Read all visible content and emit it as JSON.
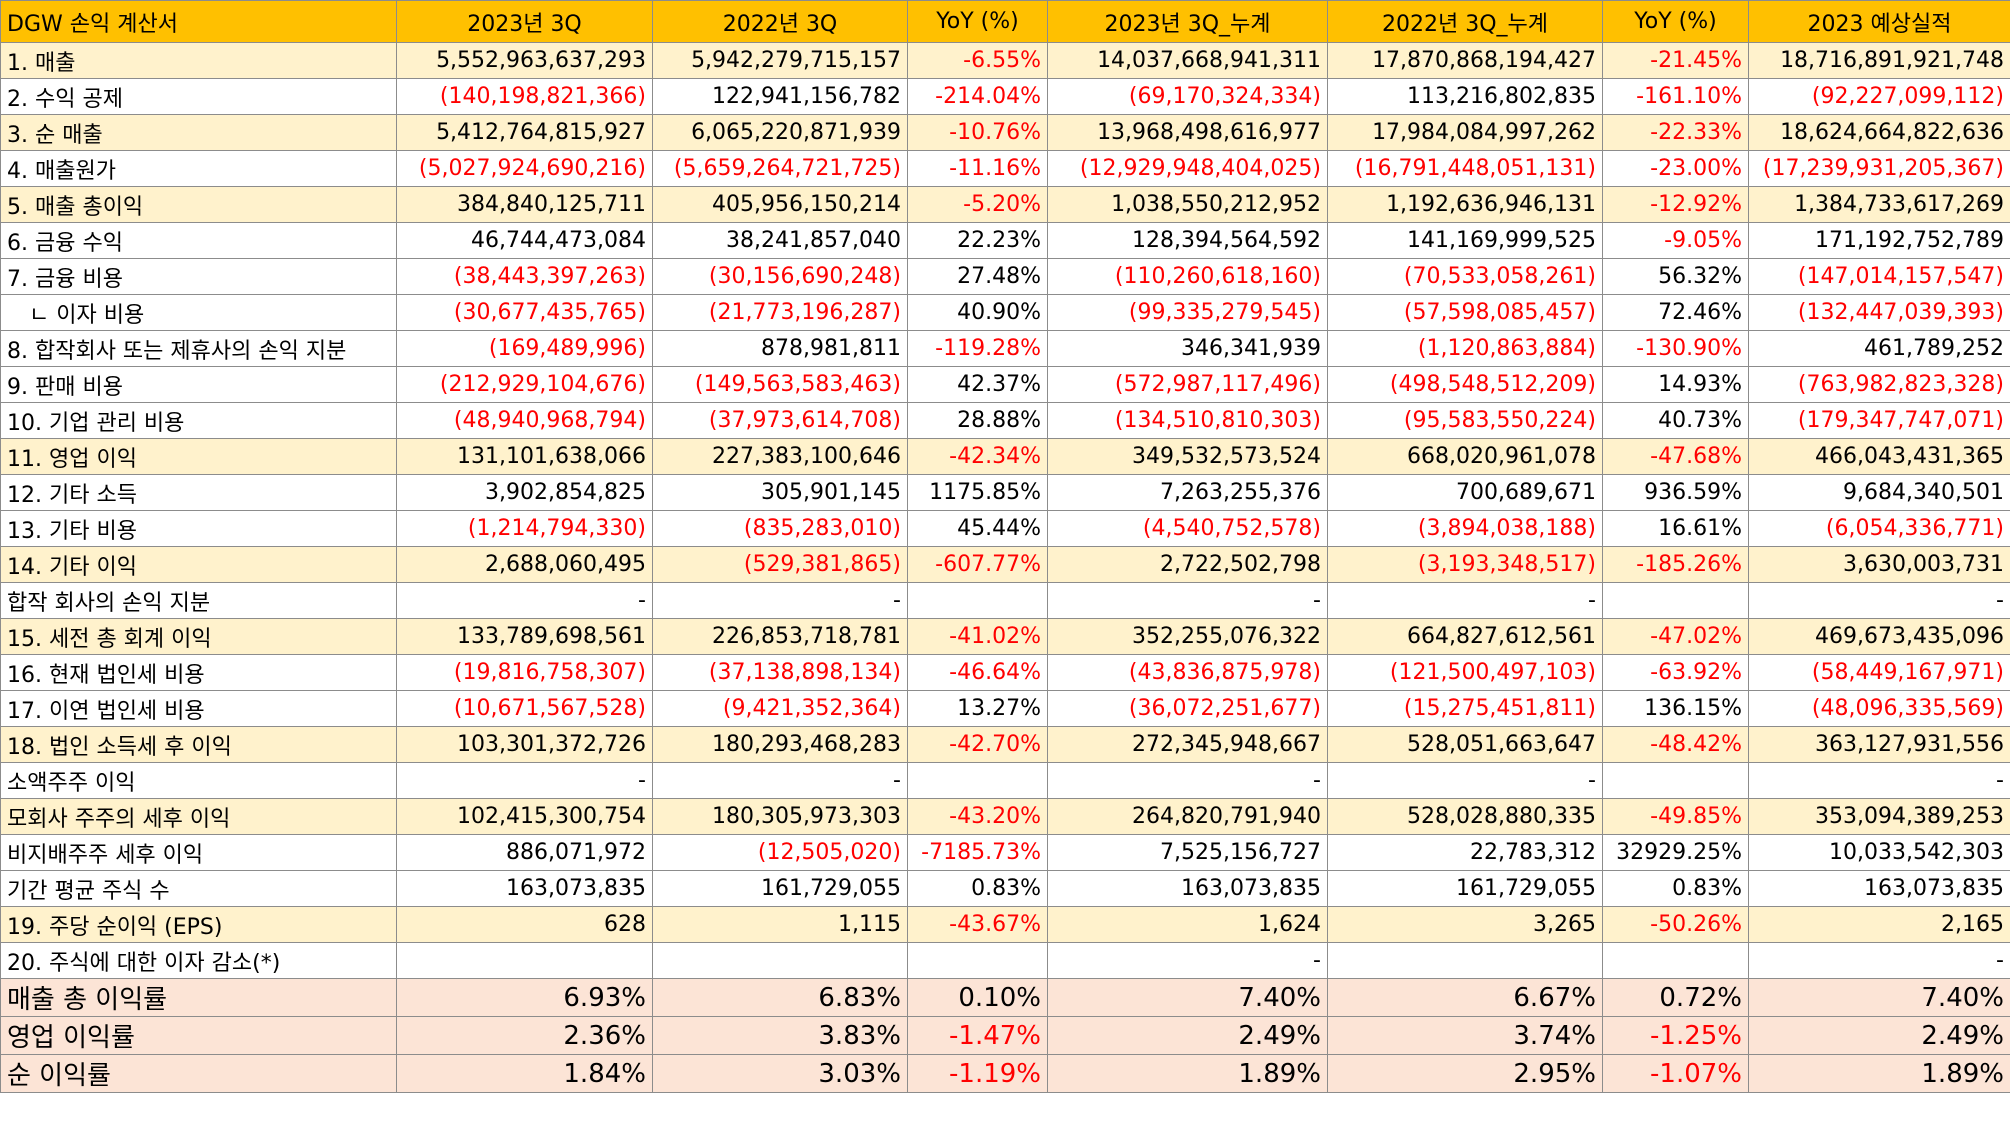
{
  "headers": [
    "DGW 손익 계산서",
    "2023년 3Q",
    "2022년 3Q",
    "YoY (%)",
    "2023년 3Q_누계",
    "2022년 3Q_누계",
    "YoY (%)",
    "2023 예상실적"
  ],
  "rows": [
    {
      "label": "1. 매출",
      "hl": true,
      "cells": [
        "5,552,963,637,293",
        "5,942,279,715,157",
        "-6.55%",
        "14,037,668,941,311",
        "17,870,868,194,427",
        "-21.45%",
        "18,716,891,921,748"
      ]
    },
    {
      "label": "2. 수익 공제",
      "hl": false,
      "cells": [
        "(140,198,821,366)",
        "122,941,156,782",
        "-214.04%",
        "(69,170,324,334)",
        "113,216,802,835",
        "-161.10%",
        "(92,227,099,112)"
      ]
    },
    {
      "label": "3. 순 매출",
      "hl": true,
      "cells": [
        "5,412,764,815,927",
        "6,065,220,871,939",
        "-10.76%",
        "13,968,498,616,977",
        "17,984,084,997,262",
        "-22.33%",
        "18,624,664,822,636"
      ]
    },
    {
      "label": "4. 매출원가",
      "hl": false,
      "cells": [
        "(5,027,924,690,216)",
        "(5,659,264,721,725)",
        "-11.16%",
        "(12,929,948,404,025)",
        "(16,791,448,051,131)",
        "-23.00%",
        "(17,239,931,205,367)"
      ]
    },
    {
      "label": "5. 매출 총이익",
      "hl": true,
      "cells": [
        "384,840,125,711",
        "405,956,150,214",
        "-5.20%",
        "1,038,550,212,952",
        "1,192,636,946,131",
        "-12.92%",
        "1,384,733,617,269"
      ]
    },
    {
      "label": "6. 금융 수익",
      "hl": false,
      "cells": [
        "46,744,473,084",
        "38,241,857,040",
        "22.23%",
        "128,394,564,592",
        "141,169,999,525",
        "-9.05%",
        "171,192,752,789"
      ]
    },
    {
      "label": "7. 금융 비용",
      "hl": false,
      "cells": [
        "(38,443,397,263)",
        "(30,156,690,248)",
        "27.48%",
        "(110,260,618,160)",
        "(70,533,058,261)",
        "56.32%",
        "(147,014,157,547)"
      ]
    },
    {
      "label": "　ㄴ 이자 비용",
      "hl": false,
      "cells": [
        "(30,677,435,765)",
        "(21,773,196,287)",
        "40.90%",
        "(99,335,279,545)",
        "(57,598,085,457)",
        "72.46%",
        "(132,447,039,393)"
      ]
    },
    {
      "label": "8. 합작회사 또는 제휴사의 손익 지분",
      "hl": false,
      "cells": [
        "(169,489,996)",
        "878,981,811",
        "-119.28%",
        "346,341,939",
        "(1,120,863,884)",
        "-130.90%",
        "461,789,252"
      ]
    },
    {
      "label": "9. 판매 비용",
      "hl": false,
      "cells": [
        "(212,929,104,676)",
        "(149,563,583,463)",
        "42.37%",
        "(572,987,117,496)",
        "(498,548,512,209)",
        "14.93%",
        "(763,982,823,328)"
      ]
    },
    {
      "label": "10. 기업 관리 비용",
      "hl": false,
      "cells": [
        "(48,940,968,794)",
        "(37,973,614,708)",
        "28.88%",
        "(134,510,810,303)",
        "(95,583,550,224)",
        "40.73%",
        "(179,347,747,071)"
      ]
    },
    {
      "label": "11. 영업 이익",
      "hl": true,
      "cells": [
        "131,101,638,066",
        "227,383,100,646",
        "-42.34%",
        "349,532,573,524",
        "668,020,961,078",
        "-47.68%",
        "466,043,431,365"
      ]
    },
    {
      "label": "12. 기타 소득",
      "hl": false,
      "cells": [
        "3,902,854,825",
        "305,901,145",
        "1175.85%",
        "7,263,255,376",
        "700,689,671",
        "936.59%",
        "9,684,340,501"
      ]
    },
    {
      "label": "13. 기타 비용",
      "hl": false,
      "cells": [
        "(1,214,794,330)",
        "(835,283,010)",
        "45.44%",
        "(4,540,752,578)",
        "(3,894,038,188)",
        "16.61%",
        "(6,054,336,771)"
      ]
    },
    {
      "label": "14. 기타 이익",
      "hl": true,
      "cells": [
        "2,688,060,495",
        "(529,381,865)",
        "-607.77%",
        "2,722,502,798",
        "(3,193,348,517)",
        "-185.26%",
        "3,630,003,731"
      ]
    },
    {
      "label": "합작 회사의 손익 지분",
      "hl": false,
      "cells": [
        "-",
        "-",
        "",
        "-",
        "-",
        "",
        "-"
      ]
    },
    {
      "label": "15. 세전 총 회계 이익",
      "hl": true,
      "cells": [
        "133,789,698,561",
        "226,853,718,781",
        "-41.02%",
        "352,255,076,322",
        "664,827,612,561",
        "-47.02%",
        "469,673,435,096"
      ]
    },
    {
      "label": "16. 현재 법인세 비용",
      "hl": false,
      "cells": [
        "(19,816,758,307)",
        "(37,138,898,134)",
        "-46.64%",
        "(43,836,875,978)",
        "(121,500,497,103)",
        "-63.92%",
        "(58,449,167,971)"
      ]
    },
    {
      "label": "17. 이연 법인세 비용",
      "hl": false,
      "cells": [
        "(10,671,567,528)",
        "(9,421,352,364)",
        "13.27%",
        "(36,072,251,677)",
        "(15,275,451,811)",
        "136.15%",
        "(48,096,335,569)"
      ]
    },
    {
      "label": "18. 법인 소득세 후 이익",
      "hl": true,
      "cells": [
        "103,301,372,726",
        "180,293,468,283",
        "-42.70%",
        "272,345,948,667",
        "528,051,663,647",
        "-48.42%",
        "363,127,931,556"
      ]
    },
    {
      "label": "소액주주 이익",
      "hl": false,
      "cells": [
        "-",
        "-",
        "",
        "-",
        "-",
        "",
        "-"
      ]
    },
    {
      "label": "모회사 주주의 세후 이익",
      "hl": true,
      "cells": [
        "102,415,300,754",
        "180,305,973,303",
        "-43.20%",
        "264,820,791,940",
        "528,028,880,335",
        "-49.85%",
        "353,094,389,253"
      ]
    },
    {
      "label": "비지배주주 세후 이익",
      "hl": false,
      "cells": [
        "886,071,972",
        "(12,505,020)",
        "-7185.73%",
        "7,525,156,727",
        "22,783,312",
        "32929.25%",
        "10,033,542,303"
      ]
    },
    {
      "label": "기간 평균 주식 수",
      "hl": false,
      "cells": [
        "163,073,835",
        "161,729,055",
        "0.83%",
        "163,073,835",
        "161,729,055",
        "0.83%",
        "163,073,835"
      ]
    },
    {
      "label": "19. 주당 순이익 (EPS)",
      "hl": true,
      "cells": [
        "628",
        "1,115",
        "-43.67%",
        "1,624",
        "3,265",
        "-50.26%",
        "2,165"
      ]
    },
    {
      "label": "20. 주식에 대한 이자 감소(*)",
      "hl": false,
      "cells": [
        "",
        "",
        "",
        "-",
        "",
        "",
        "-"
      ]
    }
  ],
  "ratio_rows": [
    {
      "label": "매출 총 이익률",
      "cells": [
        "6.93%",
        "6.83%",
        "0.10%",
        "7.40%",
        "6.67%",
        "0.72%",
        "7.40%"
      ]
    },
    {
      "label": "영업 이익률",
      "cells": [
        "2.36%",
        "3.83%",
        "-1.47%",
        "2.49%",
        "3.74%",
        "-1.25%",
        "2.49%"
      ]
    },
    {
      "label": "순 이익률",
      "cells": [
        "1.84%",
        "3.03%",
        "-1.19%",
        "1.89%",
        "2.95%",
        "-1.07%",
        "1.89%"
      ]
    }
  ],
  "colors": {
    "header": "#ffc000",
    "highlight_row": "#fff2cc",
    "ratio_row": "#fce4d6",
    "negative": "#ff0000"
  }
}
